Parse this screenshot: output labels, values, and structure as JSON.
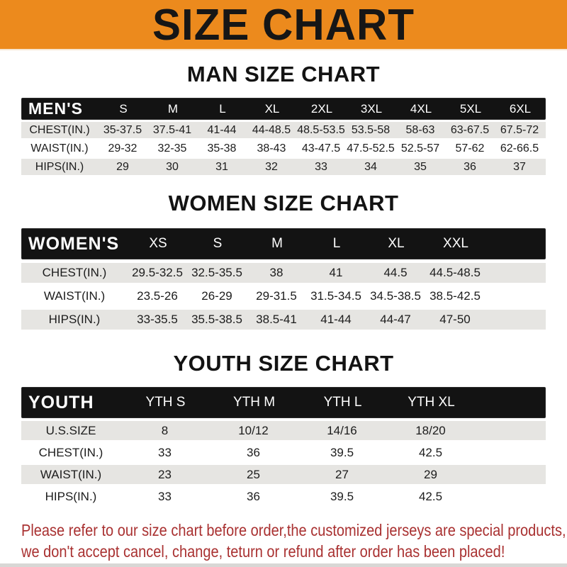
{
  "banner": {
    "title": "SIZE CHART"
  },
  "colors": {
    "banner_bg": "#EC8A1D",
    "header_bar": "#131313",
    "row_gray": "#E6E5E2",
    "footer_red": "#A93131"
  },
  "chart_data": [
    {
      "type": "table",
      "title": "MAN SIZE CHART",
      "row_header": "MEN'S",
      "columns": [
        "S",
        "M",
        "L",
        "XL",
        "2XL",
        "3XL",
        "4XL",
        "5XL",
        "6XL"
      ],
      "rows": [
        {
          "label": "CHEST(IN.)",
          "values": [
            "35-37.5",
            "37.5-41",
            "41-44",
            "44-48.5",
            "48.5-53.5",
            "53.5-58",
            "58-63",
            "63-67.5",
            "67.5-72"
          ]
        },
        {
          "label": "WAIST(IN.)",
          "values": [
            "29-32",
            "32-35",
            "35-38",
            "38-43",
            "43-47.5",
            "47.5-52.5",
            "52.5-57",
            "57-62",
            "62-66.5"
          ]
        },
        {
          "label": "HIPS(IN.)",
          "values": [
            "29",
            "30",
            "31",
            "32",
            "33",
            "34",
            "35",
            "36",
            "37"
          ]
        }
      ]
    },
    {
      "type": "table",
      "title": "WOMEN SIZE CHART",
      "row_header": "WOMEN'S",
      "columns": [
        "XS",
        "S",
        "M",
        "L",
        "XL",
        "XXL"
      ],
      "rows": [
        {
          "label": "CHEST(IN.)",
          "values": [
            "29.5-32.5",
            "32.5-35.5",
            "38",
            "41",
            "44.5",
            "44.5-48.5"
          ]
        },
        {
          "label": "WAIST(IN.)",
          "values": [
            "23.5-26",
            "26-29",
            "29-31.5",
            "31.5-34.5",
            "34.5-38.5",
            "38.5-42.5"
          ]
        },
        {
          "label": "HIPS(IN.)",
          "values": [
            "33-35.5",
            "35.5-38.5",
            "38.5-41",
            "41-44",
            "44-47",
            "47-50"
          ]
        }
      ]
    },
    {
      "type": "table",
      "title": "YOUTH SIZE CHART",
      "row_header": "YOUTH",
      "columns": [
        "YTH S",
        "YTH M",
        "YTH L",
        "YTH XL"
      ],
      "rows": [
        {
          "label": "U.S.SIZE",
          "values": [
            "8",
            "10/12",
            "14/16",
            "18/20"
          ]
        },
        {
          "label": "CHEST(IN.)",
          "values": [
            "33",
            "36",
            "39.5",
            "42.5"
          ]
        },
        {
          "label": "WAIST(IN.)",
          "values": [
            "23",
            "25",
            "27",
            "29"
          ]
        },
        {
          "label": "HIPS(IN.)",
          "values": [
            "33",
            "36",
            "39.5",
            "42.5"
          ]
        }
      ]
    }
  ],
  "footer": {
    "line1": "Please refer to our size chart before order,the customized jerseys are special products,",
    "line2": "we don't accept cancel, change, teturn or refund after order has been placed!"
  }
}
